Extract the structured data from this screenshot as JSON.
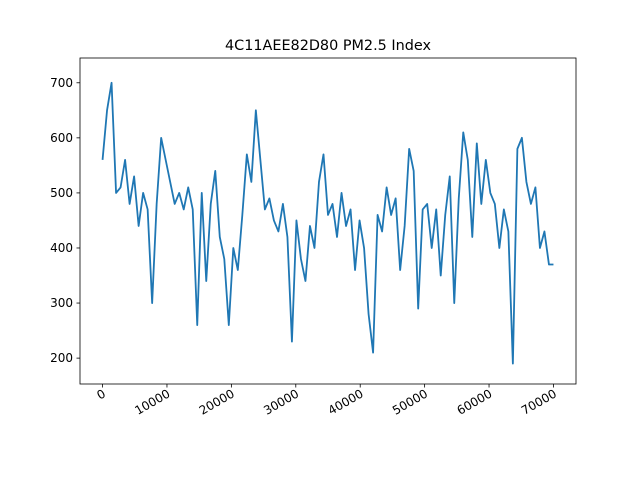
{
  "chart_data": {
    "type": "line",
    "title": "4C11AEE82D80 PM2.5 Index",
    "x": [
      0,
      700,
      1400,
      2100,
      2800,
      3500,
      4200,
      4900,
      5600,
      6300,
      7000,
      7700,
      8400,
      9100,
      9800,
      10500,
      11200,
      11900,
      12600,
      13300,
      14000,
      14700,
      15400,
      16100,
      16800,
      17500,
      18200,
      18900,
      19600,
      20300,
      21000,
      21700,
      22400,
      23100,
      23800,
      24500,
      25200,
      25900,
      26600,
      27300,
      28000,
      28700,
      29400,
      30100,
      30800,
      31500,
      32200,
      32900,
      33600,
      34300,
      35000,
      35700,
      36400,
      37100,
      37800,
      38500,
      39200,
      39900,
      40600,
      41300,
      42000,
      42700,
      43400,
      44100,
      44800,
      45500,
      46200,
      46900,
      47600,
      48300,
      49000,
      49700,
      50400,
      51100,
      51800,
      52500,
      53200,
      53900,
      54600,
      55300,
      56000,
      56700,
      57400,
      58100,
      58800,
      59500,
      60200,
      60900,
      61600,
      62300,
      63000,
      63700,
      64400,
      65100,
      65800,
      66500,
      67200,
      67900,
      68600,
      69300,
      70000
    ],
    "series": [
      {
        "color": "#1f77b4",
        "values": [
          560,
          650,
          700,
          500,
          510,
          560,
          480,
          530,
          440,
          500,
          470,
          300,
          480,
          600,
          560,
          520,
          480,
          500,
          470,
          510,
          470,
          260,
          500,
          340,
          480,
          540,
          420,
          380,
          260,
          400,
          360,
          460,
          570,
          520,
          650,
          560,
          470,
          490,
          450,
          430,
          480,
          420,
          230,
          450,
          380,
          340,
          440,
          400,
          520,
          570,
          460,
          480,
          420,
          500,
          440,
          470,
          360,
          450,
          400,
          280,
          210,
          460,
          430,
          510,
          460,
          490,
          360,
          440,
          580,
          540,
          290,
          470,
          480,
          400,
          470,
          350,
          460,
          530,
          300,
          490,
          610,
          560,
          420,
          590,
          480,
          560,
          500,
          480,
          400,
          470,
          430,
          190,
          580,
          600,
          520,
          480,
          510,
          400,
          430,
          370,
          370
        ]
      }
    ],
    "xlim": [
      -3500,
      73500
    ],
    "xticks": [
      0,
      10000,
      20000,
      30000,
      40000,
      50000,
      60000,
      70000
    ],
    "ylim": [
      153,
      745
    ],
    "yticks": [
      200,
      300,
      400,
      500,
      600,
      700
    ]
  }
}
